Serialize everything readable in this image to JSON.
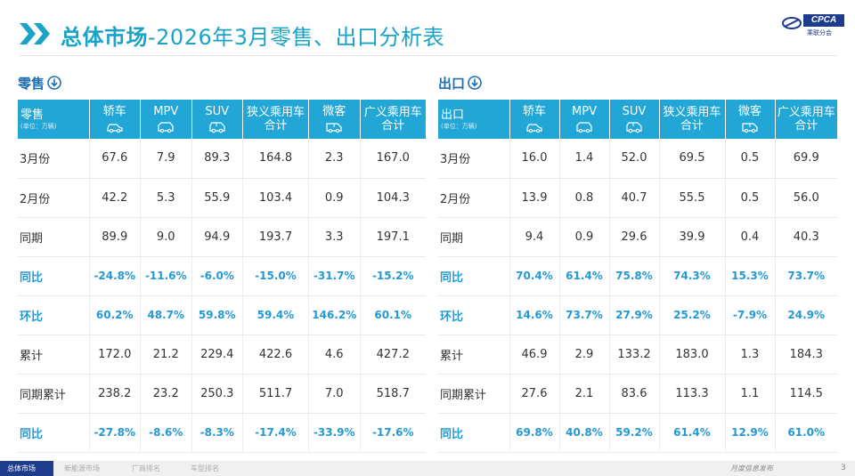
{
  "header": {
    "title_bold": "总体市场",
    "title_rest": "-2026年3月零售、出口分析表",
    "logo_text": "CPCA",
    "logo_cn": "乘联分会"
  },
  "columns": [
    "轿车",
    "MPV",
    "SUV",
    "狭义乘用车合计",
    "微客",
    "广义乘用车合计"
  ],
  "column_icons": [
    "sedan-icon",
    "mpv-icon",
    "suv-icon",
    "",
    "minivan-icon",
    ""
  ],
  "retail": {
    "section_title": "零售",
    "corner_label": "零售",
    "unit": "(单位：万辆)",
    "rows": [
      {
        "label": "3月份",
        "type": "value",
        "cells": [
          "67.6",
          "7.9",
          "89.3",
          "164.8",
          "2.3",
          "167.0"
        ]
      },
      {
        "label": "2月份",
        "type": "value",
        "cells": [
          "42.2",
          "5.3",
          "55.9",
          "103.4",
          "0.9",
          "104.3"
        ]
      },
      {
        "label": "同期",
        "type": "value",
        "cells": [
          "89.9",
          "9.0",
          "94.9",
          "193.7",
          "3.3",
          "197.1"
        ]
      },
      {
        "label": "同比",
        "type": "pct",
        "cells": [
          "-24.8%",
          "-11.6%",
          "-6.0%",
          "-15.0%",
          "-31.7%",
          "-15.2%"
        ]
      },
      {
        "label": "环比",
        "type": "pct",
        "cells": [
          "60.2%",
          "48.7%",
          "59.8%",
          "59.4%",
          "146.2%",
          "60.1%"
        ]
      },
      {
        "label": "累计",
        "type": "value",
        "cells": [
          "172.0",
          "21.2",
          "229.4",
          "422.6",
          "4.6",
          "427.2"
        ]
      },
      {
        "label": "同期累计",
        "type": "value",
        "cells": [
          "238.2",
          "23.2",
          "250.3",
          "511.7",
          "7.0",
          "518.7"
        ]
      },
      {
        "label": "同比",
        "type": "pct",
        "cells": [
          "-27.8%",
          "-8.6%",
          "-8.3%",
          "-17.4%",
          "-33.9%",
          "-17.6%"
        ]
      }
    ]
  },
  "export": {
    "section_title": "出口",
    "corner_label": "出口",
    "unit": "(单位：万辆)",
    "rows": [
      {
        "label": "3月份",
        "type": "value",
        "cells": [
          "16.0",
          "1.4",
          "52.0",
          "69.5",
          "0.5",
          "69.9"
        ]
      },
      {
        "label": "2月份",
        "type": "value",
        "cells": [
          "13.9",
          "0.8",
          "40.7",
          "55.5",
          "0.5",
          "56.0"
        ]
      },
      {
        "label": "同期",
        "type": "value",
        "cells": [
          "9.4",
          "0.9",
          "29.6",
          "39.9",
          "0.4",
          "40.3"
        ]
      },
      {
        "label": "同比",
        "type": "pct",
        "cells": [
          "70.4%",
          "61.4%",
          "75.8%",
          "74.3%",
          "15.3%",
          "73.7%"
        ]
      },
      {
        "label": "环比",
        "type": "pct",
        "cells": [
          "14.6%",
          "73.7%",
          "27.9%",
          "25.2%",
          "-7.9%",
          "24.9%"
        ]
      },
      {
        "label": "累计",
        "type": "value",
        "cells": [
          "46.9",
          "2.9",
          "133.2",
          "183.0",
          "1.3",
          "184.3"
        ]
      },
      {
        "label": "同期累计",
        "type": "value",
        "cells": [
          "27.6",
          "2.1",
          "83.6",
          "113.3",
          "1.1",
          "114.5"
        ]
      },
      {
        "label": "同比",
        "type": "pct",
        "cells": [
          "69.8%",
          "40.8%",
          "59.2%",
          "61.4%",
          "12.9%",
          "61.0%"
        ]
      }
    ]
  },
  "footer": {
    "tabs": [
      "总体市场",
      "新能源市场",
      "厂商排名",
      "车型排名"
    ],
    "slogan": "月度信息发布",
    "page": "3"
  },
  "colors": {
    "accent": "#1aa3c8",
    "header_bg": "#22a6d6",
    "pct_text": "#2499d3",
    "section_title": "#1e6fb4",
    "footer_active": "#1e3c8c"
  }
}
